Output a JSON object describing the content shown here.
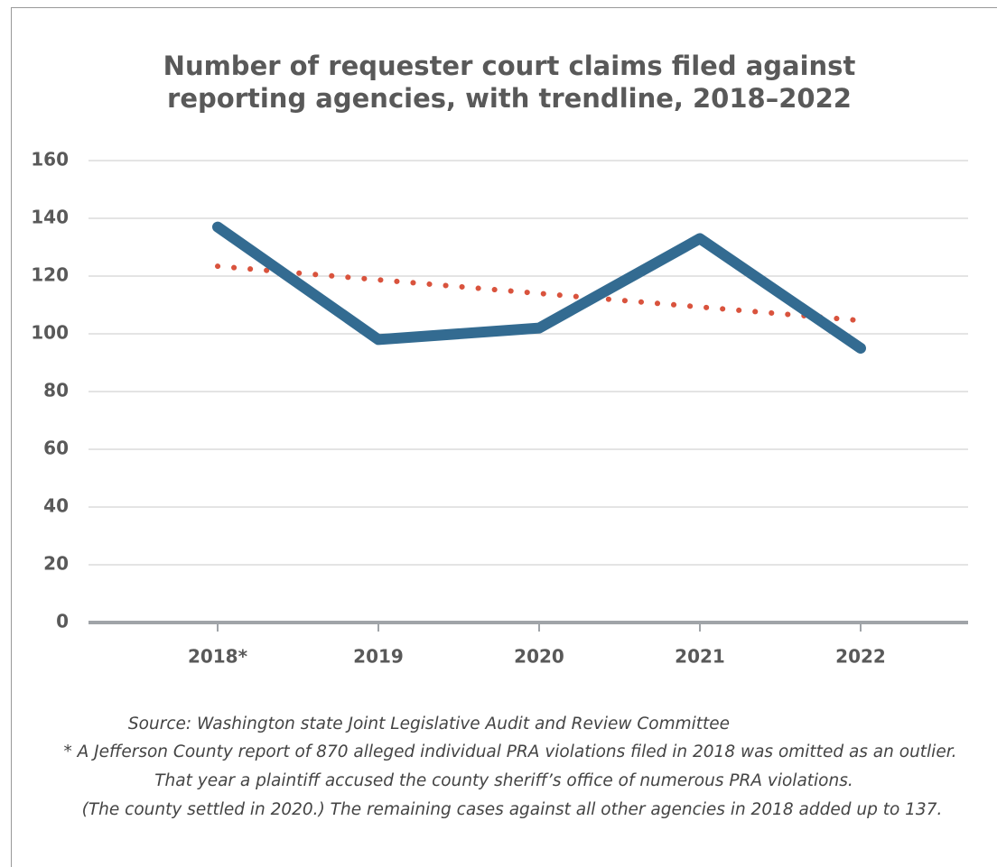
{
  "chart_data": {
    "type": "line",
    "title": [
      "Number of requester court claims filed against",
      "reporting agencies, with trendline, 2018–2022"
    ],
    "categories": [
      "2018*",
      "2019",
      "2020",
      "2021",
      "2022"
    ],
    "series": [
      {
        "color": "#336b91",
        "values": [
          137,
          98,
          102,
          133,
          95
        ]
      },
      {
        "color": "#d9533d",
        "style": "dotted",
        "values": [
          123.4,
          118.7,
          114,
          109.3,
          104.6
        ]
      }
    ],
    "ylim": [
      0,
      160
    ],
    "yticks": [
      0,
      20,
      40,
      60,
      80,
      100,
      120,
      140,
      160
    ],
    "grid": true,
    "notes": [
      "Source: Washington state Joint Legislative Audit and Review Committee",
      "* A Jefferson County report of 870 alleged individual PRA violations filed in 2018 was omitted as an outlier.",
      "That year a plaintiff accused the county sheriff’s office of numerous PRA violations.",
      "(The county settled in 2020.) The remaining cases against all other agencies in 2018 added up to 137."
    ]
  }
}
